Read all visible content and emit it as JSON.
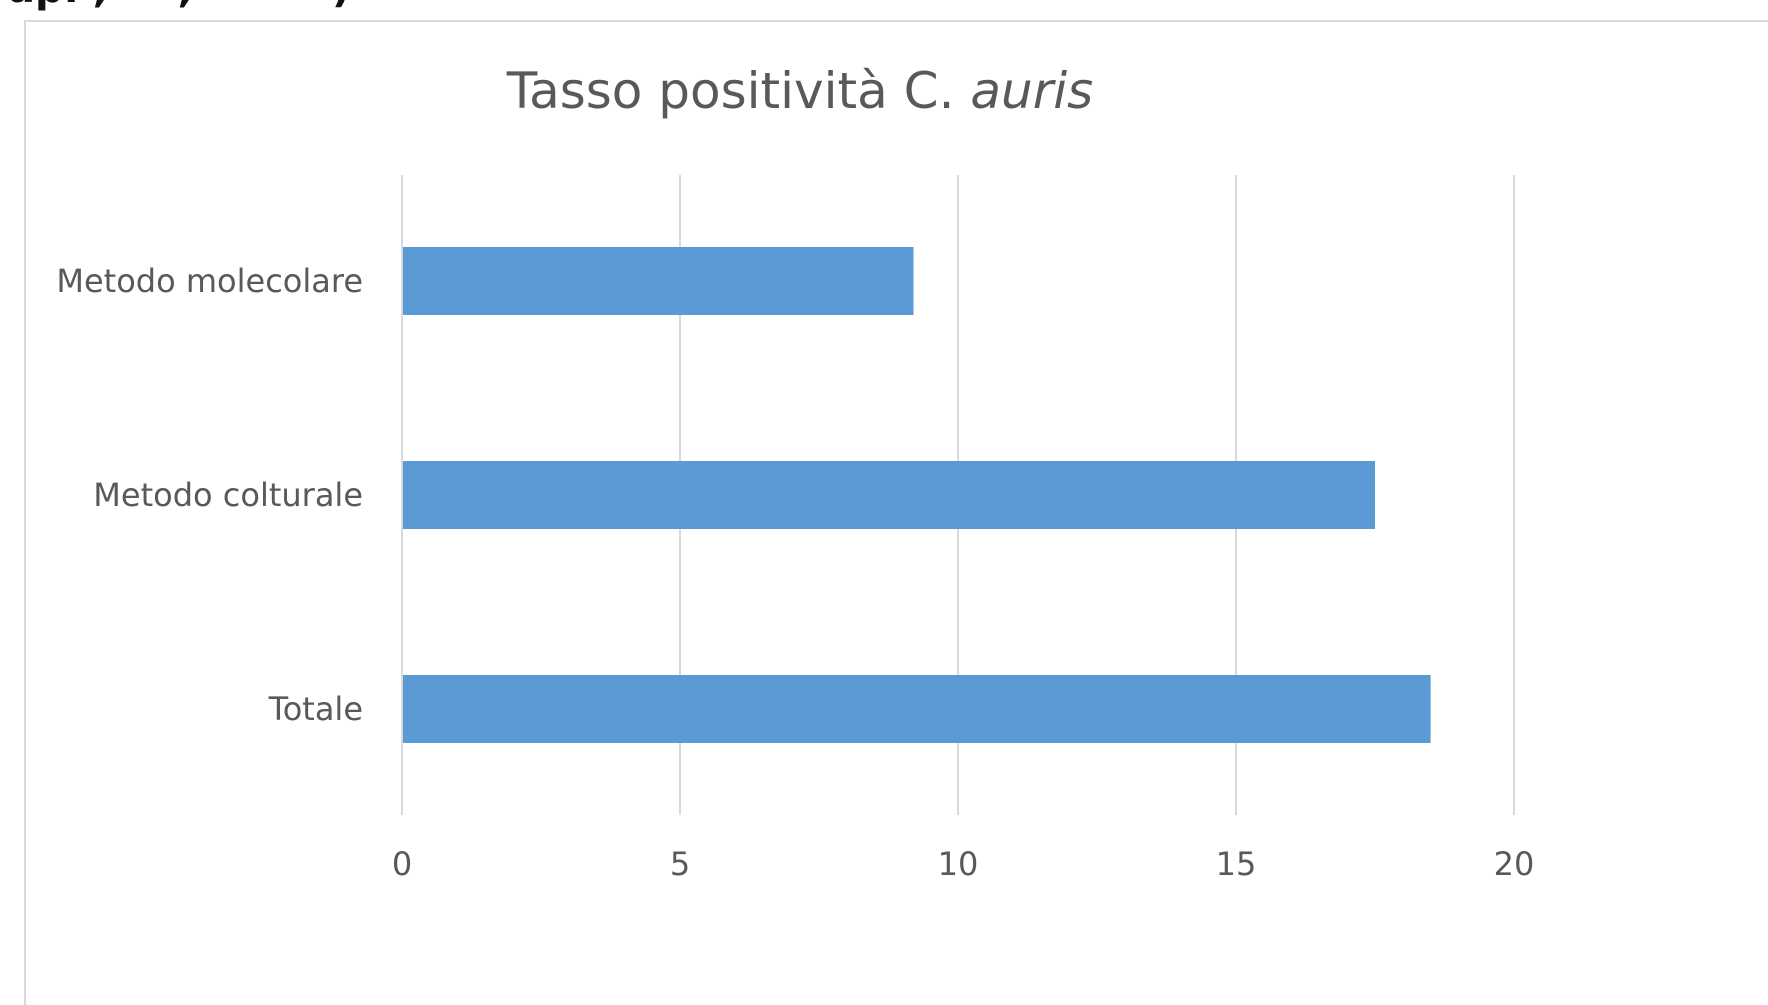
{
  "top_fragment": "ap. ,     ,          )",
  "chart_data": {
    "type": "bar",
    "orientation": "horizontal",
    "title_plain": "Tasso positività C. ",
    "title_italic": "auris",
    "categories": [
      "Metodo molecolare",
      "Metodo colturale",
      "Totale"
    ],
    "values": [
      9.2,
      17.5,
      18.5
    ],
    "xlim": [
      0,
      20
    ],
    "xticks": [
      "0",
      "5",
      "10",
      "15",
      "20"
    ],
    "xlabel": "",
    "ylabel": "",
    "grid": "vertical",
    "legend": "none",
    "bar_color": "#5b9bd5",
    "grid_color": "#d9d9d9"
  }
}
